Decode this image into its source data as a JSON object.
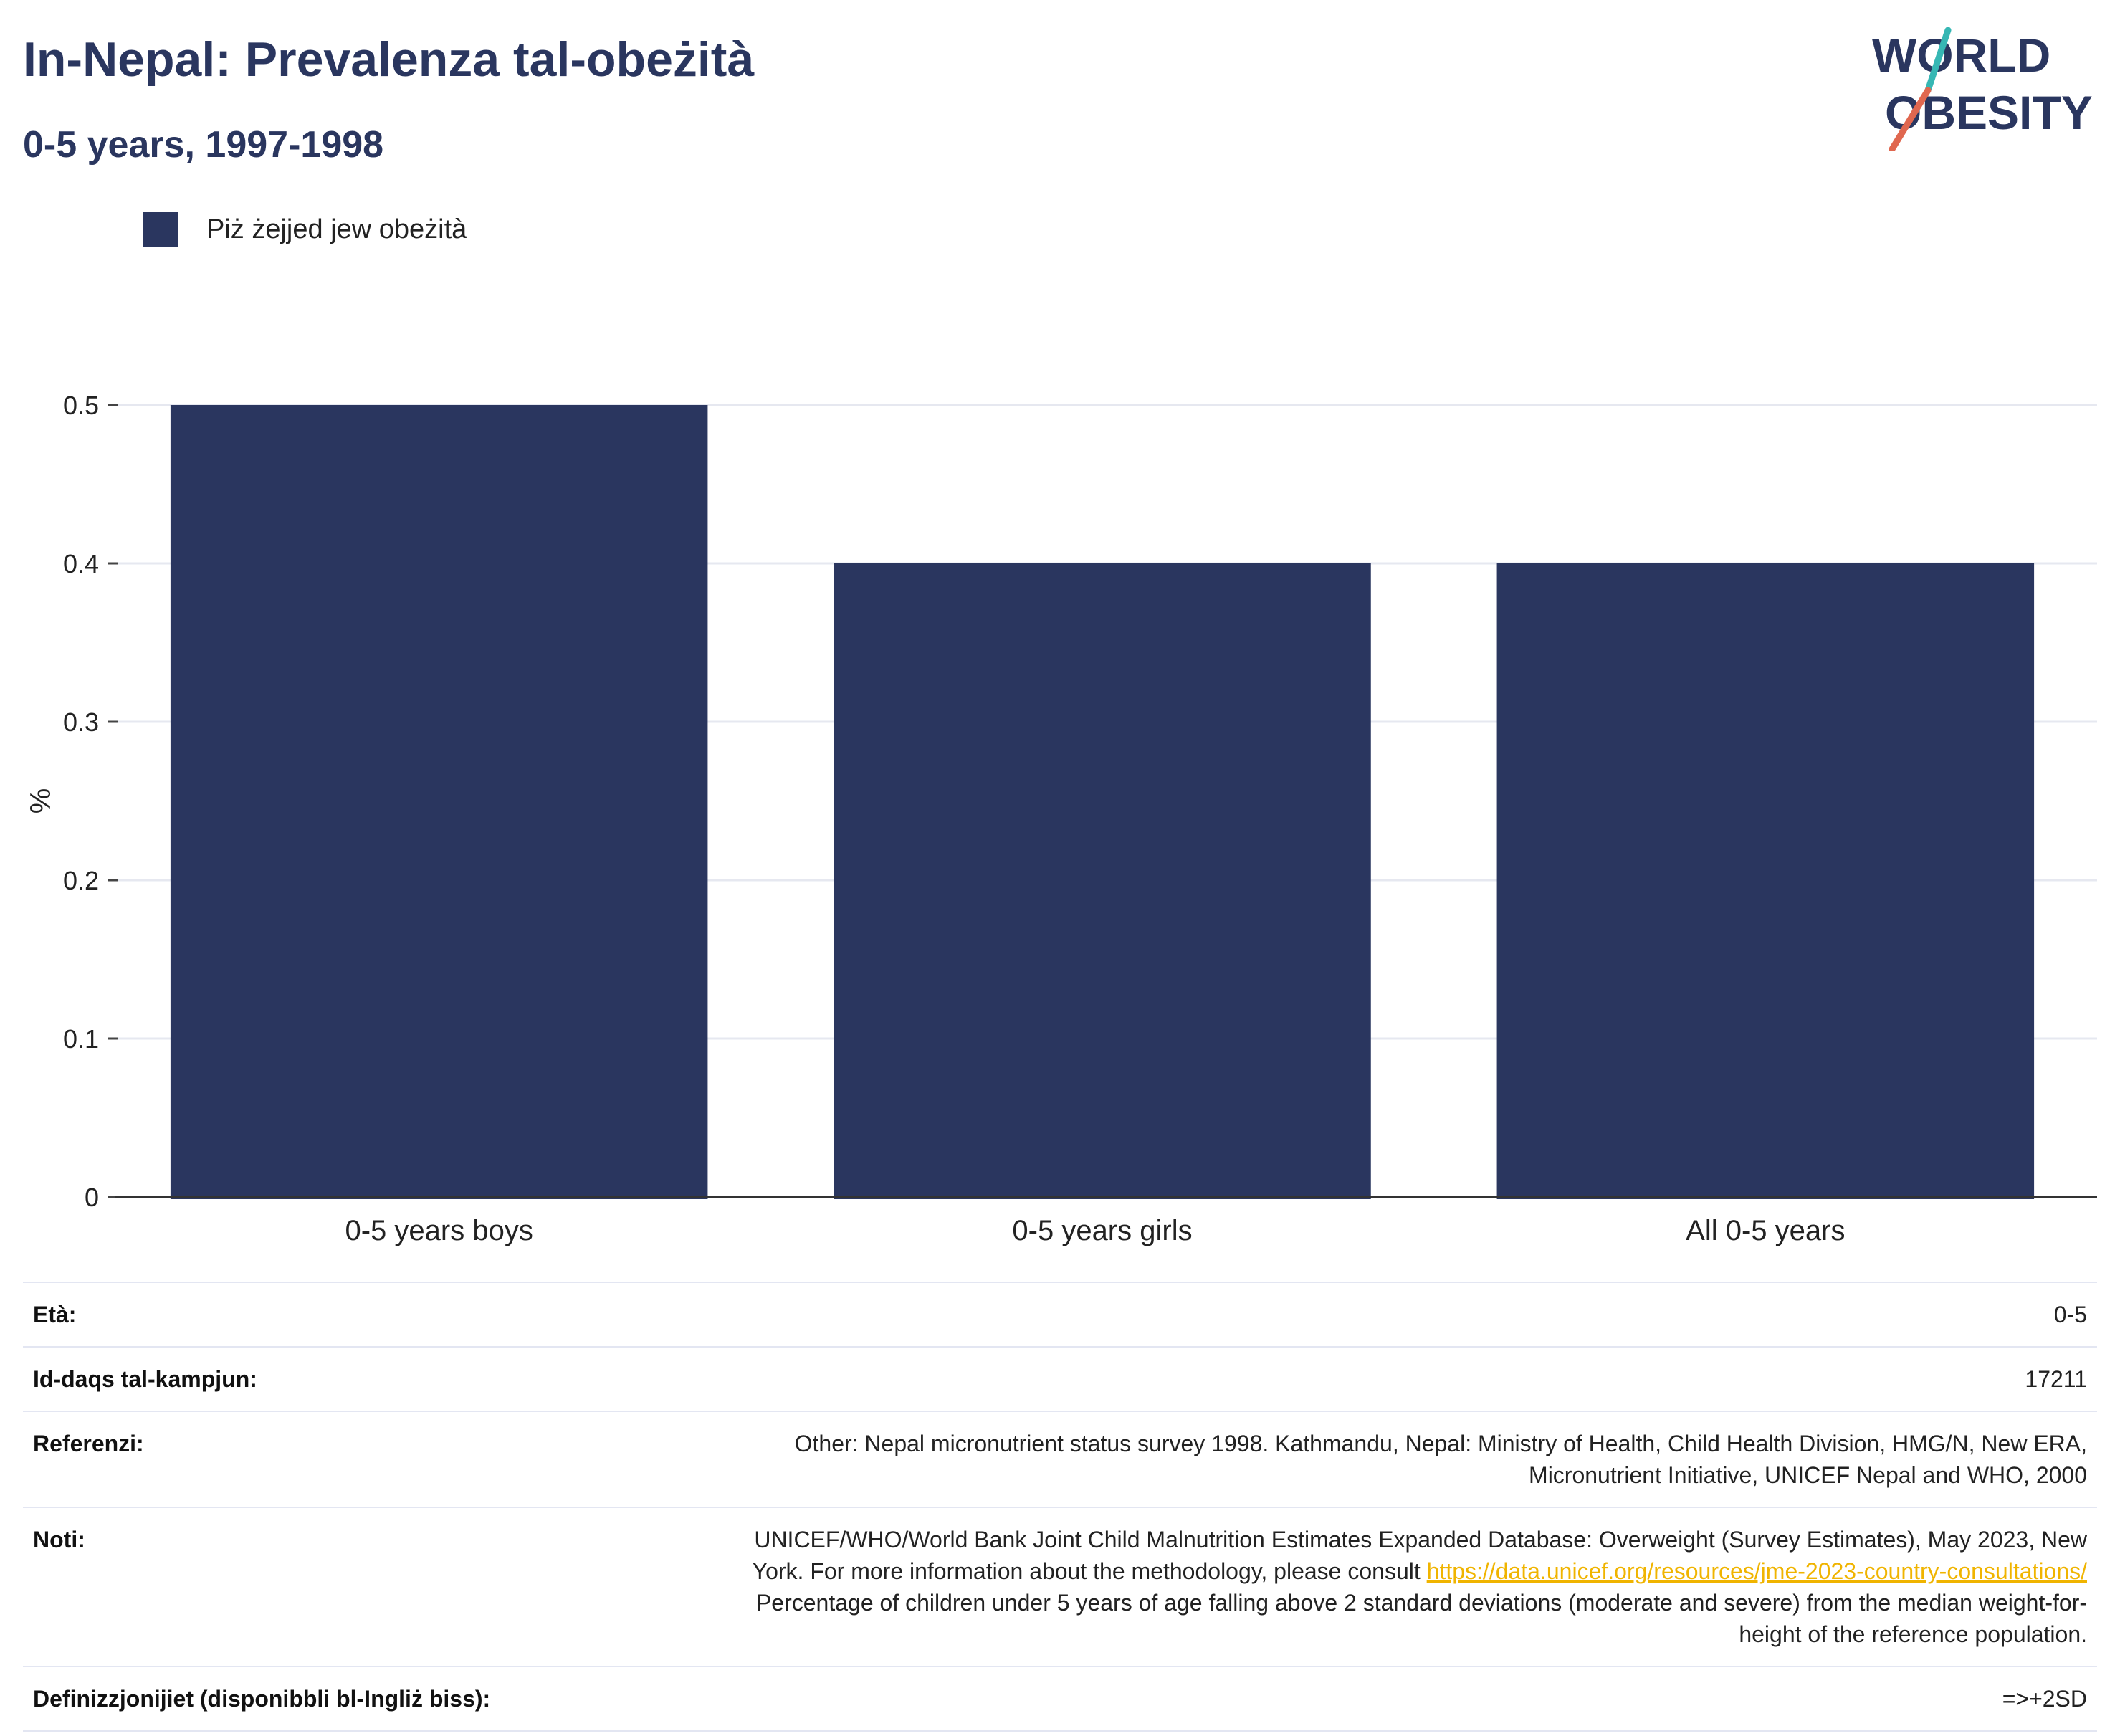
{
  "header": {
    "title": "In-Nepal: Prevalenza tal-obeżità",
    "subtitle": "0-5 years, 1997-1998"
  },
  "logo": {
    "line1": "WORLD",
    "line2": "OBESITY",
    "text_color": "#2a365f",
    "slash_colors": [
      "#e0674f",
      "#36b7b4"
    ]
  },
  "legend": {
    "label": "Piż żejjed jew obeżità",
    "color": "#2a365f"
  },
  "chart_data": {
    "type": "bar",
    "categories": [
      "0-5 years boys",
      "0-5 years girls",
      "All 0-5 years"
    ],
    "series": [
      {
        "name": "Piż żejjed jew obeżità",
        "values": [
          0.5,
          0.4,
          0.4
        ],
        "color": "#2a365f"
      }
    ],
    "ylabel": "%",
    "ylim": [
      0,
      0.5
    ],
    "yticks": [
      "0",
      "0.1",
      "0.2",
      "0.3",
      "0.4",
      "0.5"
    ],
    "grid": true,
    "legend_position": "top-left"
  },
  "meta": {
    "age_label": "Età:",
    "age_value": "0-5",
    "sample_label": "Id-daqs tal-kampjun:",
    "sample_value": "17211",
    "ref_label": "Referenzi:",
    "ref_value": "Other: Nepal micronutrient status survey 1998. Kathmandu, Nepal: Ministry of Health, Child Health Division, HMG/N, New ERA, Micronutrient Initiative, UNICEF Nepal and WHO, 2000",
    "notes_label": "Noti:",
    "notes_text1": "UNICEF/WHO/World Bank Joint Child Malnutrition Estimates Expanded Database: Overweight (Survey Estimates), May 2023, New York. For more information about the methodology, please consult ",
    "notes_link": "https://data.unicef.org/resources/jme-2023-country-consultations/",
    "notes_text2": "Percentage of children under 5 years of age falling above 2 standard deviations (moderate and severe) from the median weight-for-height of the reference population.",
    "def_label": "Definizzjonijiet (disponibbli bl-Ingliż biss):",
    "def_value": "=>+2SD"
  }
}
